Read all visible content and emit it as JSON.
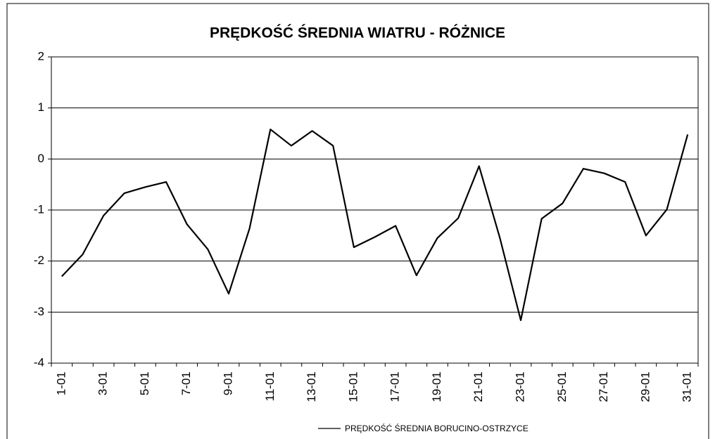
{
  "chart_data": {
    "type": "line",
    "title": "PRĘDKOŚĆ ŚREDNIA WIATRU - RÓŻNICE",
    "categories": [
      "1-01",
      null,
      "3-01",
      null,
      "5-01",
      null,
      "7-01",
      null,
      "9-01",
      null,
      "11-01",
      null,
      "13-01",
      null,
      "15-01",
      null,
      "17-01",
      null,
      "19-01",
      null,
      "21-01",
      null,
      "23-01",
      null,
      "25-01",
      null,
      "27-01",
      null,
      "29-01",
      null,
      "31-01"
    ],
    "series": [
      {
        "name": "PRĘDKOŚĆ ŚREDNIA BORUCINO-OSTRZYCE",
        "color": "#000000",
        "values": [
          -2.3,
          -1.87,
          -1.11,
          -0.67,
          -0.55,
          -0.45,
          -1.28,
          -1.77,
          -2.64,
          -1.36,
          0.58,
          0.26,
          0.55,
          0.26,
          -1.73,
          -1.53,
          -1.31,
          -2.28,
          -1.55,
          -1.16,
          -0.14,
          -1.55,
          -3.16,
          -1.17,
          -0.87,
          -0.19,
          -0.28,
          -0.45,
          -1.5,
          -0.99,
          0.48
        ]
      }
    ],
    "ylim": [
      -4,
      2
    ],
    "yticks": [
      -4,
      -3,
      -2,
      -1,
      0,
      1,
      2
    ],
    "grid": true,
    "legend": "bottom"
  }
}
